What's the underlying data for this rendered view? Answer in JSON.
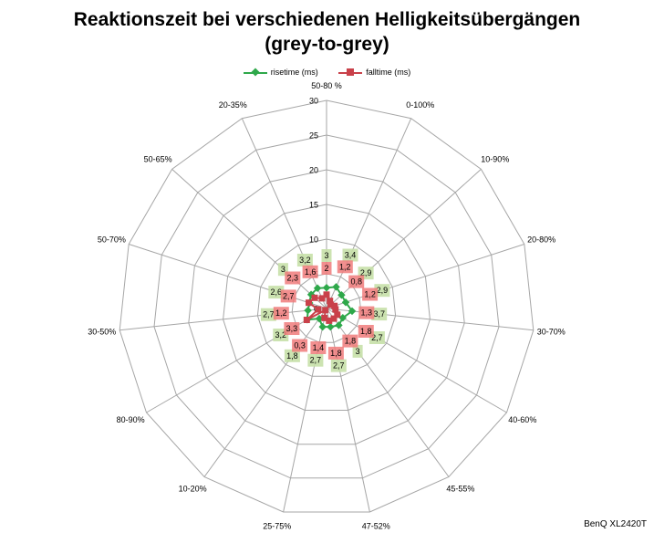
{
  "footer_label": "BenQ XL2420T",
  "colors": {
    "risetime": "#2ea84a",
    "falltime": "#c9414a",
    "rise_label_bg": "#c6e0a8",
    "fall_label_bg": "#f07b7b",
    "grid": "#a6a6a6"
  },
  "chart_data": {
    "type": "radar",
    "title": "Reaktionszeit bei verschiedenen Helligkeitsübergängen (grey-to-grey)",
    "title_lines": [
      "Reaktionszeit bei verschiedenen Helligkeitsübergängen",
      "(grey-to-grey)"
    ],
    "categories": [
      "50-80 %",
      "0-100%",
      "10-90%",
      "20-80%",
      "30-70%",
      "40-60%",
      "45-55%",
      "47-52%",
      "25-75%",
      "10-20%",
      "80-90%",
      "30-50%",
      "50-70%",
      "50-65%",
      "20-35%"
    ],
    "radial_axis": {
      "min": 0,
      "max": 30,
      "step": 5,
      "ticks": [
        "0",
        "5",
        "10",
        "15",
        "20",
        "25",
        "30"
      ]
    },
    "legend_position": "top",
    "series": [
      {
        "name": "risetime (ms)",
        "values": [
          3.0,
          3.4,
          2.9,
          2.9,
          3.7,
          2.7,
          3.0,
          2.7,
          2.7,
          1.8,
          3.2,
          2.7,
          2.6,
          3.0,
          3.2
        ],
        "labels": [
          "3",
          "3,4",
          "2,9",
          "2,9",
          "3,7",
          "2,7",
          "3",
          "2,7",
          "2,7",
          "1,8",
          "3,2",
          "2,7",
          "2,6",
          "3",
          "3,2"
        ]
      },
      {
        "name": "falltime (ms)",
        "values": [
          2.0,
          1.2,
          0.8,
          1.2,
          1.3,
          1.8,
          1.8,
          1.8,
          1.4,
          0.3,
          3.3,
          1.2,
          2.7,
          2.3,
          1.6
        ],
        "labels": [
          "2",
          "1,2",
          "0,8",
          "1,2",
          "1,3",
          "1,8",
          "1,8",
          "1,8",
          "1,4",
          "0,3",
          "3,3",
          "1,2",
          "2,7",
          "2,3",
          "1,6"
        ]
      }
    ]
  }
}
